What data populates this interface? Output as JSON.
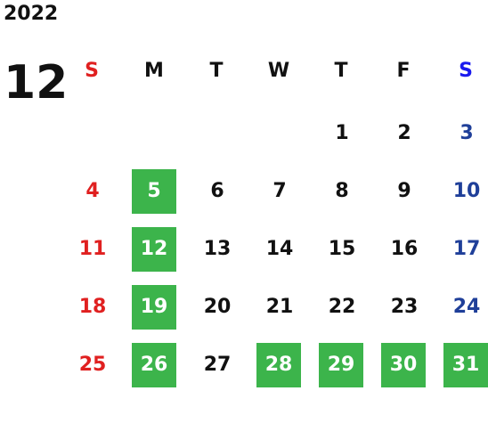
{
  "calendar": {
    "year": "2022",
    "month": "12",
    "headers": [
      {
        "text": "S",
        "color": "#e02020"
      },
      {
        "text": "M",
        "color": "#111111"
      },
      {
        "text": "T",
        "color": "#111111"
      },
      {
        "text": "W",
        "color": "#111111"
      },
      {
        "text": "T",
        "color": "#111111"
      },
      {
        "text": "F",
        "color": "#111111"
      },
      {
        "text": "S",
        "color": "#1a1aee"
      }
    ],
    "day_colors": [
      "#e02020",
      "#111111",
      "#111111",
      "#111111",
      "#111111",
      "#111111",
      "#1f3f99"
    ],
    "highlight_color": "#3cb44b",
    "highlight_text_color": "#ffffff",
    "weeks": [
      [
        null,
        null,
        null,
        null,
        {
          "text": "1"
        },
        {
          "text": "2"
        },
        {
          "text": "3"
        }
      ],
      [
        {
          "text": "4"
        },
        {
          "text": "5",
          "highlight": true
        },
        {
          "text": "6"
        },
        {
          "text": "7"
        },
        {
          "text": "8"
        },
        {
          "text": "9"
        },
        {
          "text": "10"
        }
      ],
      [
        {
          "text": "11"
        },
        {
          "text": "12",
          "highlight": true
        },
        {
          "text": "13"
        },
        {
          "text": "14"
        },
        {
          "text": "15"
        },
        {
          "text": "16"
        },
        {
          "text": "17"
        }
      ],
      [
        {
          "text": "18"
        },
        {
          "text": "19",
          "highlight": true
        },
        {
          "text": "20"
        },
        {
          "text": "21"
        },
        {
          "text": "22"
        },
        {
          "text": "23"
        },
        {
          "text": "24"
        }
      ],
      [
        {
          "text": "25"
        },
        {
          "text": "26",
          "highlight": true
        },
        {
          "text": "27"
        },
        {
          "text": "28",
          "highlight": true
        },
        {
          "text": "29",
          "highlight": true
        },
        {
          "text": "30",
          "highlight": true
        },
        {
          "text": "31",
          "highlight": true
        }
      ]
    ]
  }
}
